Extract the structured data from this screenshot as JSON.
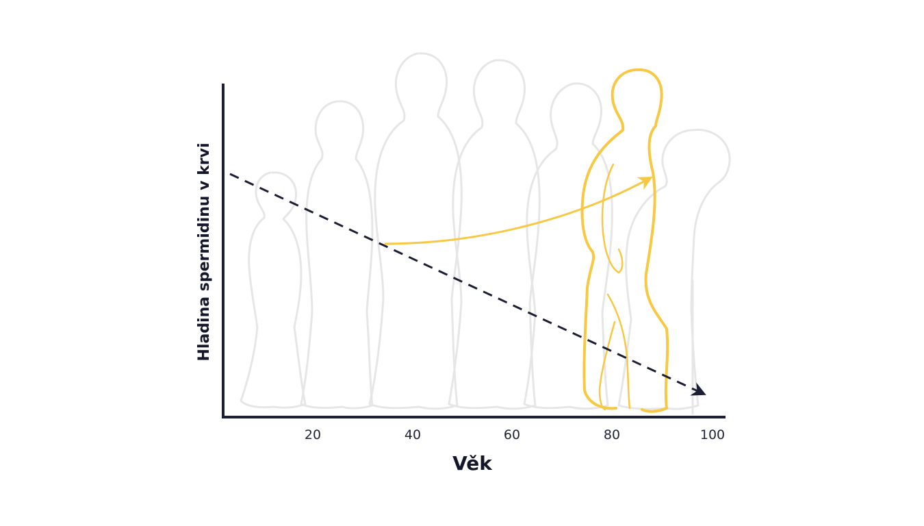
{
  "diagram": {
    "x_axis_title": "Věk",
    "y_axis_title": "Hladina spermidinu v krvi",
    "x_ticks": [
      "20",
      "40",
      "60",
      "80",
      "100"
    ],
    "colors": {
      "axis": "#1c1f33",
      "silhouette": "#e6e6e6",
      "highlight": "#f7c843",
      "dashed_trend": "#1c1f33"
    },
    "elements": {
      "trend_line": "dashed decreasing arrow",
      "highlight_arrow": "curved arrow toward highlighted figure"
    }
  }
}
